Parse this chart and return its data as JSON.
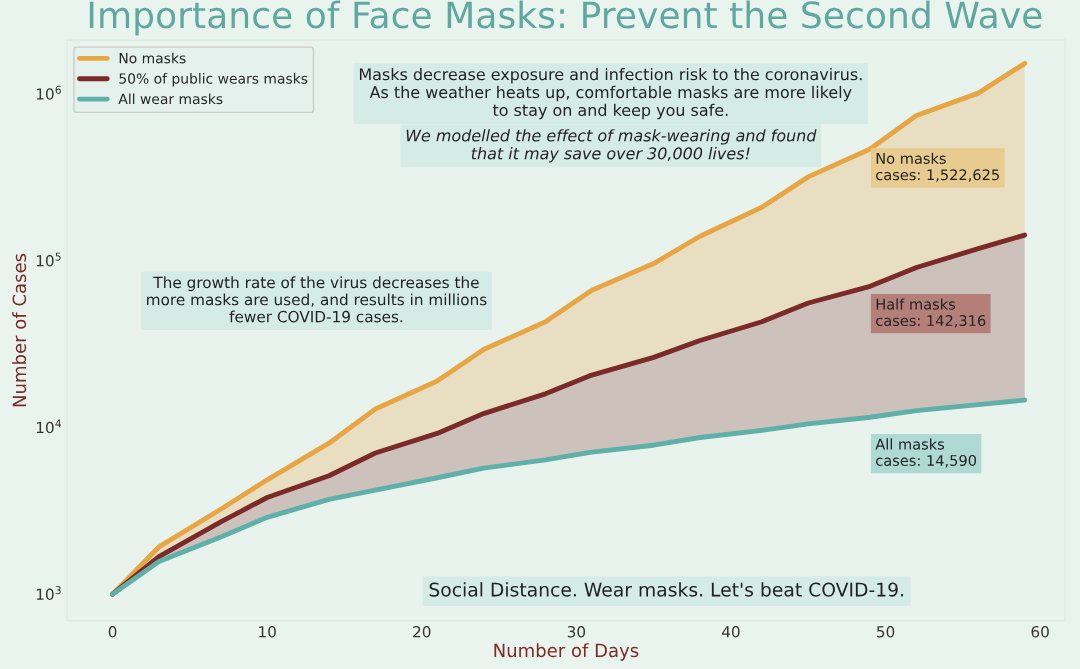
{
  "chart_data": {
    "type": "line",
    "title": "Importance of Face Masks: Prevent the Second Wave",
    "xlabel": "Number of Days",
    "ylabel": "Number of Cases",
    "x": [
      0,
      3,
      7,
      10,
      14,
      17,
      21,
      24,
      28,
      31,
      35,
      38,
      42,
      45,
      49,
      52,
      56,
      59
    ],
    "series": [
      {
        "name": "No masks",
        "type": "area",
        "color": "#e8a543",
        "values": [
          1000,
          1920,
          3230,
          4850,
          8040,
          12900,
          18970,
          29300,
          43000,
          66400,
          96000,
          140000,
          209000,
          318000,
          467000,
          741000,
          1010000,
          1522625
        ]
      },
      {
        "name": "50% of public wears masks",
        "type": "area",
        "color": "#7b2a28",
        "values": [
          1000,
          1680,
          2710,
          3800,
          5130,
          7020,
          9200,
          12100,
          15900,
          20600,
          26300,
          33200,
          43000,
          55700,
          70100,
          91000,
          118000,
          142316
        ]
      },
      {
        "name": "All wear masks",
        "color": "#5fb0a8",
        "values": [
          1000,
          1570,
          2200,
          2890,
          3700,
          4200,
          4990,
          5700,
          6390,
          7100,
          7820,
          8700,
          9590,
          10500,
          11500,
          12600,
          13700,
          14590
        ]
      }
    ],
    "annotations": [
      "Masks decrease exposure and infection risk to the coronavirus.\nAs the weather heats up, comfortable masks are more likely\nto stay on and keep you safe.",
      "We modelled the effect of mask-wearing and found\nthat it may save over 30,000 lives!",
      "No masks\ncases: 1,522,625",
      "The growth rate of the virus decreases the\nmore masks are used, and results in millions\nfewer COVID-19 cases.",
      "Half masks\ncases: 142,316",
      "All masks\ncases: 14,590",
      "Social Distance. Wear masks. Let's beat COVID-19."
    ],
    "log": "y",
    "xlim": [
      -2.95,
      61.6
    ],
    "ylim": [
      692,
      2100000
    ],
    "xticks": [
      0,
      10,
      20,
      30,
      40,
      50,
      60
    ],
    "yticks": [
      {
        "value": 1000,
        "label": "10$^{3}$"
      },
      {
        "value": 10000,
        "label": "10$^{4}$"
      },
      {
        "value": 100000,
        "label": "10$^{5}$"
      },
      {
        "value": 1000000,
        "label": "10$^{6}$"
      }
    ],
    "grid": false,
    "legend": "top left",
    "line_style": "solid",
    "marker": "none"
  }
}
